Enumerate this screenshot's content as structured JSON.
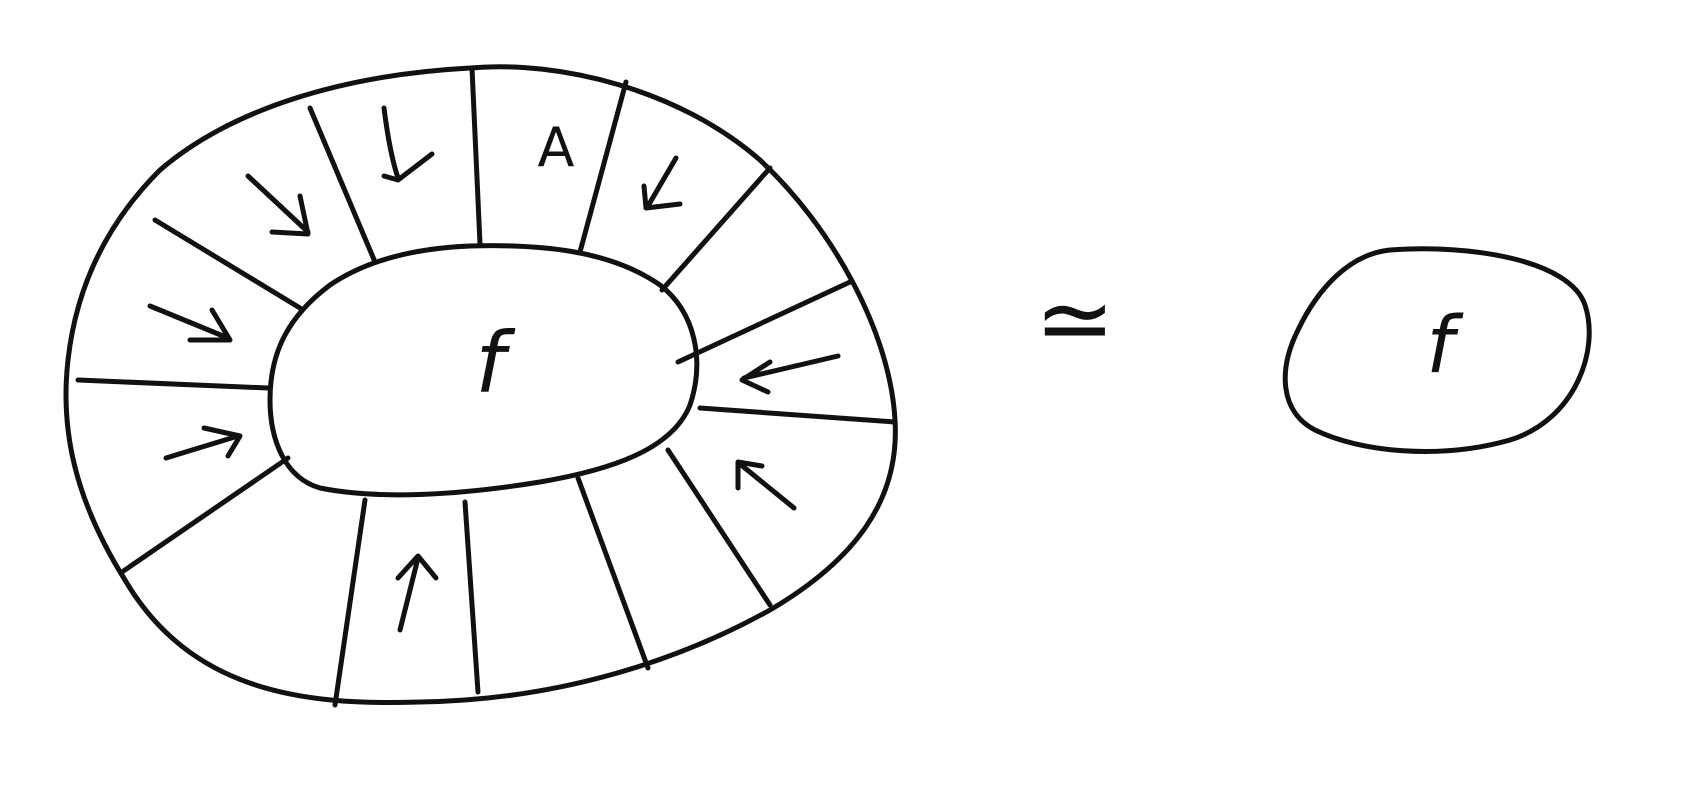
{
  "diagram": {
    "left_inner_label": "f",
    "top_cell_label": "A",
    "relation_symbol": "≃",
    "right_label": "f"
  },
  "colors": {
    "ink": "#111111",
    "paper": "#ffffff"
  }
}
